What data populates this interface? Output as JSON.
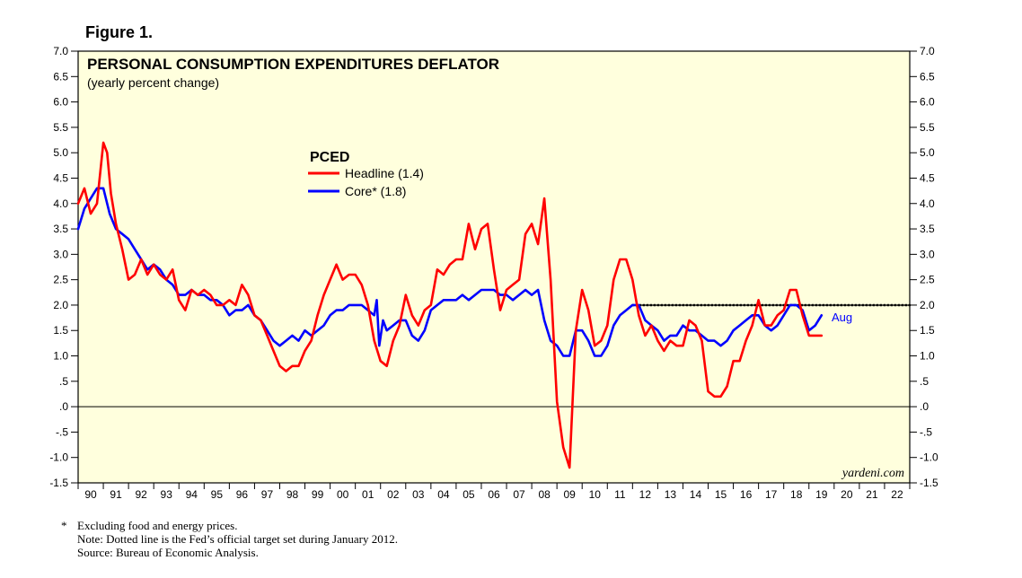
{
  "figure_label": "Figure 1.",
  "chart_data": {
    "type": "line",
    "title": "PERSONAL CONSUMPTION EXPENDITURES DEFLATOR",
    "subtitle": "(yearly percent change)",
    "legend_title": "PCED",
    "legend_position": "upper-left",
    "ylim": [
      -1.5,
      7.0
    ],
    "xlim": [
      1990,
      2023
    ],
    "y_ticks": [
      {
        "v": 7.0,
        "label": "7.0"
      },
      {
        "v": 6.5,
        "label": "6.5"
      },
      {
        "v": 6.0,
        "label": "6.0"
      },
      {
        "v": 5.5,
        "label": "5.5"
      },
      {
        "v": 5.0,
        "label": "5.0"
      },
      {
        "v": 4.5,
        "label": "4.5"
      },
      {
        "v": 4.0,
        "label": "4.0"
      },
      {
        "v": 3.5,
        "label": "3.5"
      },
      {
        "v": 3.0,
        "label": "3.0"
      },
      {
        "v": 2.5,
        "label": "2.5"
      },
      {
        "v": 2.0,
        "label": "2.0"
      },
      {
        "v": 1.5,
        "label": "1.5"
      },
      {
        "v": 1.0,
        "label": "1.0"
      },
      {
        "v": 0.5,
        "label": ".5"
      },
      {
        "v": 0.0,
        "label": ".0"
      },
      {
        "v": -0.5,
        "label": "-.5"
      },
      {
        "v": -1.0,
        "label": "-1.0"
      },
      {
        "v": -1.5,
        "label": "-1.5"
      }
    ],
    "x_tick_labels": [
      "90",
      "91",
      "92",
      "93",
      "94",
      "95",
      "96",
      "97",
      "98",
      "99",
      "00",
      "01",
      "02",
      "03",
      "04",
      "05",
      "06",
      "07",
      "08",
      "09",
      "10",
      "11",
      "12",
      "13",
      "14",
      "15",
      "16",
      "17",
      "18",
      "19",
      "20",
      "21",
      "22"
    ],
    "target_line": {
      "value": 2.0,
      "start": 2012.0,
      "end": 2023.0,
      "style": "dotted"
    },
    "zero_line": true,
    "latest_label": "Aug",
    "watermark": "yardeni.com",
    "colors": {
      "headline": "#ff0000",
      "core": "#0000ff",
      "plot_bg": "#ffffdd",
      "target": "#000000"
    },
    "series": [
      {
        "name": "Headline",
        "legend_label": "Headline (1.4)",
        "color": "#ff0000",
        "x": [
          1990.0,
          1990.25,
          1990.5,
          1990.75,
          1991.0,
          1991.15,
          1991.3,
          1991.5,
          1991.75,
          1992.0,
          1992.25,
          1992.5,
          1992.75,
          1993.0,
          1993.25,
          1993.5,
          1993.75,
          1994.0,
          1994.25,
          1994.5,
          1994.75,
          1995.0,
          1995.25,
          1995.5,
          1995.75,
          1996.0,
          1996.25,
          1996.5,
          1996.75,
          1997.0,
          1997.25,
          1997.5,
          1997.75,
          1998.0,
          1998.25,
          1998.5,
          1998.75,
          1999.0,
          1999.25,
          1999.5,
          1999.75,
          2000.0,
          2000.25,
          2000.5,
          2000.75,
          2001.0,
          2001.25,
          2001.5,
          2001.75,
          2002.0,
          2002.25,
          2002.5,
          2002.75,
          2003.0,
          2003.25,
          2003.5,
          2003.75,
          2004.0,
          2004.25,
          2004.5,
          2004.75,
          2005.0,
          2005.25,
          2005.5,
          2005.75,
          2006.0,
          2006.25,
          2006.5,
          2006.75,
          2007.0,
          2007.25,
          2007.5,
          2007.75,
          2008.0,
          2008.25,
          2008.5,
          2008.75,
          2009.0,
          2009.25,
          2009.5,
          2009.75,
          2010.0,
          2010.25,
          2010.5,
          2010.75,
          2011.0,
          2011.25,
          2011.5,
          2011.75,
          2012.0,
          2012.25,
          2012.5,
          2012.75,
          2013.0,
          2013.25,
          2013.5,
          2013.75,
          2014.0,
          2014.25,
          2014.5,
          2014.75,
          2015.0,
          2015.25,
          2015.5,
          2015.75,
          2016.0,
          2016.25,
          2016.5,
          2016.75,
          2017.0,
          2017.25,
          2017.5,
          2017.75,
          2018.0,
          2018.25,
          2018.5,
          2018.75,
          2019.0,
          2019.25,
          2019.5
        ],
        "values": [
          4.0,
          4.3,
          3.8,
          4.0,
          5.2,
          5.0,
          4.2,
          3.6,
          3.1,
          2.5,
          2.6,
          2.9,
          2.6,
          2.8,
          2.6,
          2.5,
          2.7,
          2.1,
          1.9,
          2.3,
          2.2,
          2.3,
          2.2,
          2.0,
          2.0,
          2.1,
          2.0,
          2.4,
          2.2,
          1.8,
          1.7,
          1.4,
          1.1,
          0.8,
          0.7,
          0.8,
          0.8,
          1.1,
          1.3,
          1.8,
          2.2,
          2.5,
          2.8,
          2.5,
          2.6,
          2.6,
          2.4,
          2.0,
          1.3,
          0.9,
          0.8,
          1.3,
          1.6,
          2.2,
          1.8,
          1.6,
          1.9,
          2.0,
          2.7,
          2.6,
          2.8,
          2.9,
          2.9,
          3.6,
          3.1,
          3.5,
          3.6,
          2.7,
          1.9,
          2.3,
          2.4,
          2.5,
          3.4,
          3.6,
          3.2,
          4.1,
          2.5,
          0.1,
          -0.8,
          -1.2,
          1.5,
          2.3,
          1.9,
          1.2,
          1.3,
          1.6,
          2.5,
          2.9,
          2.9,
          2.5,
          1.8,
          1.4,
          1.6,
          1.3,
          1.1,
          1.3,
          1.2,
          1.2,
          1.7,
          1.6,
          1.3,
          0.3,
          0.2,
          0.2,
          0.4,
          0.9,
          0.9,
          1.3,
          1.6,
          2.1,
          1.6,
          1.6,
          1.8,
          1.9,
          2.3,
          2.3,
          1.8,
          1.4,
          1.4,
          1.4
        ]
      },
      {
        "name": "Core*",
        "legend_label": "Core* (1.8)",
        "color": "#0000ff",
        "x": [
          1990.0,
          1990.25,
          1990.5,
          1990.75,
          1991.0,
          1991.25,
          1991.5,
          1991.75,
          1992.0,
          1992.25,
          1992.5,
          1992.75,
          1993.0,
          1993.25,
          1993.5,
          1993.75,
          1994.0,
          1994.25,
          1994.5,
          1994.75,
          1995.0,
          1995.25,
          1995.5,
          1995.75,
          1996.0,
          1996.25,
          1996.5,
          1996.75,
          1997.0,
          1997.25,
          1997.5,
          1997.75,
          1998.0,
          1998.25,
          1998.5,
          1998.75,
          1999.0,
          1999.25,
          1999.5,
          1999.75,
          2000.0,
          2000.25,
          2000.5,
          2000.75,
          2001.0,
          2001.25,
          2001.5,
          2001.75,
          2001.85,
          2001.95,
          2002.1,
          2002.25,
          2002.5,
          2002.75,
          2003.0,
          2003.25,
          2003.5,
          2003.75,
          2004.0,
          2004.25,
          2004.5,
          2004.75,
          2005.0,
          2005.25,
          2005.5,
          2005.75,
          2006.0,
          2006.25,
          2006.5,
          2006.75,
          2007.0,
          2007.25,
          2007.5,
          2007.75,
          2008.0,
          2008.25,
          2008.5,
          2008.75,
          2009.0,
          2009.25,
          2009.5,
          2009.75,
          2010.0,
          2010.25,
          2010.5,
          2010.75,
          2011.0,
          2011.25,
          2011.5,
          2011.75,
          2012.0,
          2012.25,
          2012.5,
          2012.75,
          2013.0,
          2013.25,
          2013.5,
          2013.75,
          2014.0,
          2014.25,
          2014.5,
          2014.75,
          2015.0,
          2015.25,
          2015.5,
          2015.75,
          2016.0,
          2016.25,
          2016.5,
          2016.75,
          2017.0,
          2017.25,
          2017.5,
          2017.75,
          2018.0,
          2018.25,
          2018.5,
          2018.75,
          2019.0,
          2019.25,
          2019.5
        ],
        "values": [
          3.5,
          3.9,
          4.1,
          4.3,
          4.3,
          3.8,
          3.5,
          3.4,
          3.3,
          3.1,
          2.9,
          2.7,
          2.8,
          2.7,
          2.5,
          2.4,
          2.2,
          2.2,
          2.3,
          2.2,
          2.2,
          2.1,
          2.1,
          2.0,
          1.8,
          1.9,
          1.9,
          2.0,
          1.8,
          1.7,
          1.5,
          1.3,
          1.2,
          1.3,
          1.4,
          1.3,
          1.5,
          1.4,
          1.5,
          1.6,
          1.8,
          1.9,
          1.9,
          2.0,
          2.0,
          2.0,
          1.9,
          1.8,
          2.1,
          1.2,
          1.7,
          1.5,
          1.6,
          1.7,
          1.7,
          1.4,
          1.3,
          1.5,
          1.9,
          2.0,
          2.1,
          2.1,
          2.1,
          2.2,
          2.1,
          2.2,
          2.3,
          2.3,
          2.3,
          2.2,
          2.2,
          2.1,
          2.2,
          2.3,
          2.2,
          2.3,
          1.7,
          1.3,
          1.2,
          1.0,
          1.0,
          1.5,
          1.5,
          1.3,
          1.0,
          1.0,
          1.2,
          1.6,
          1.8,
          1.9,
          2.0,
          2.0,
          1.7,
          1.6,
          1.5,
          1.3,
          1.4,
          1.4,
          1.6,
          1.5,
          1.5,
          1.4,
          1.3,
          1.3,
          1.2,
          1.3,
          1.5,
          1.6,
          1.7,
          1.8,
          1.8,
          1.6,
          1.5,
          1.6,
          1.8,
          2.0,
          2.0,
          1.9,
          1.5,
          1.6,
          1.8
        ]
      }
    ]
  },
  "footnotes": {
    "asterisk": "*",
    "line1": "Excluding food and energy prices.",
    "line2": "Note: Dotted line is the Fed’s official target set during January 2012.",
    "line3": "Source: Bureau of Economic Analysis."
  }
}
